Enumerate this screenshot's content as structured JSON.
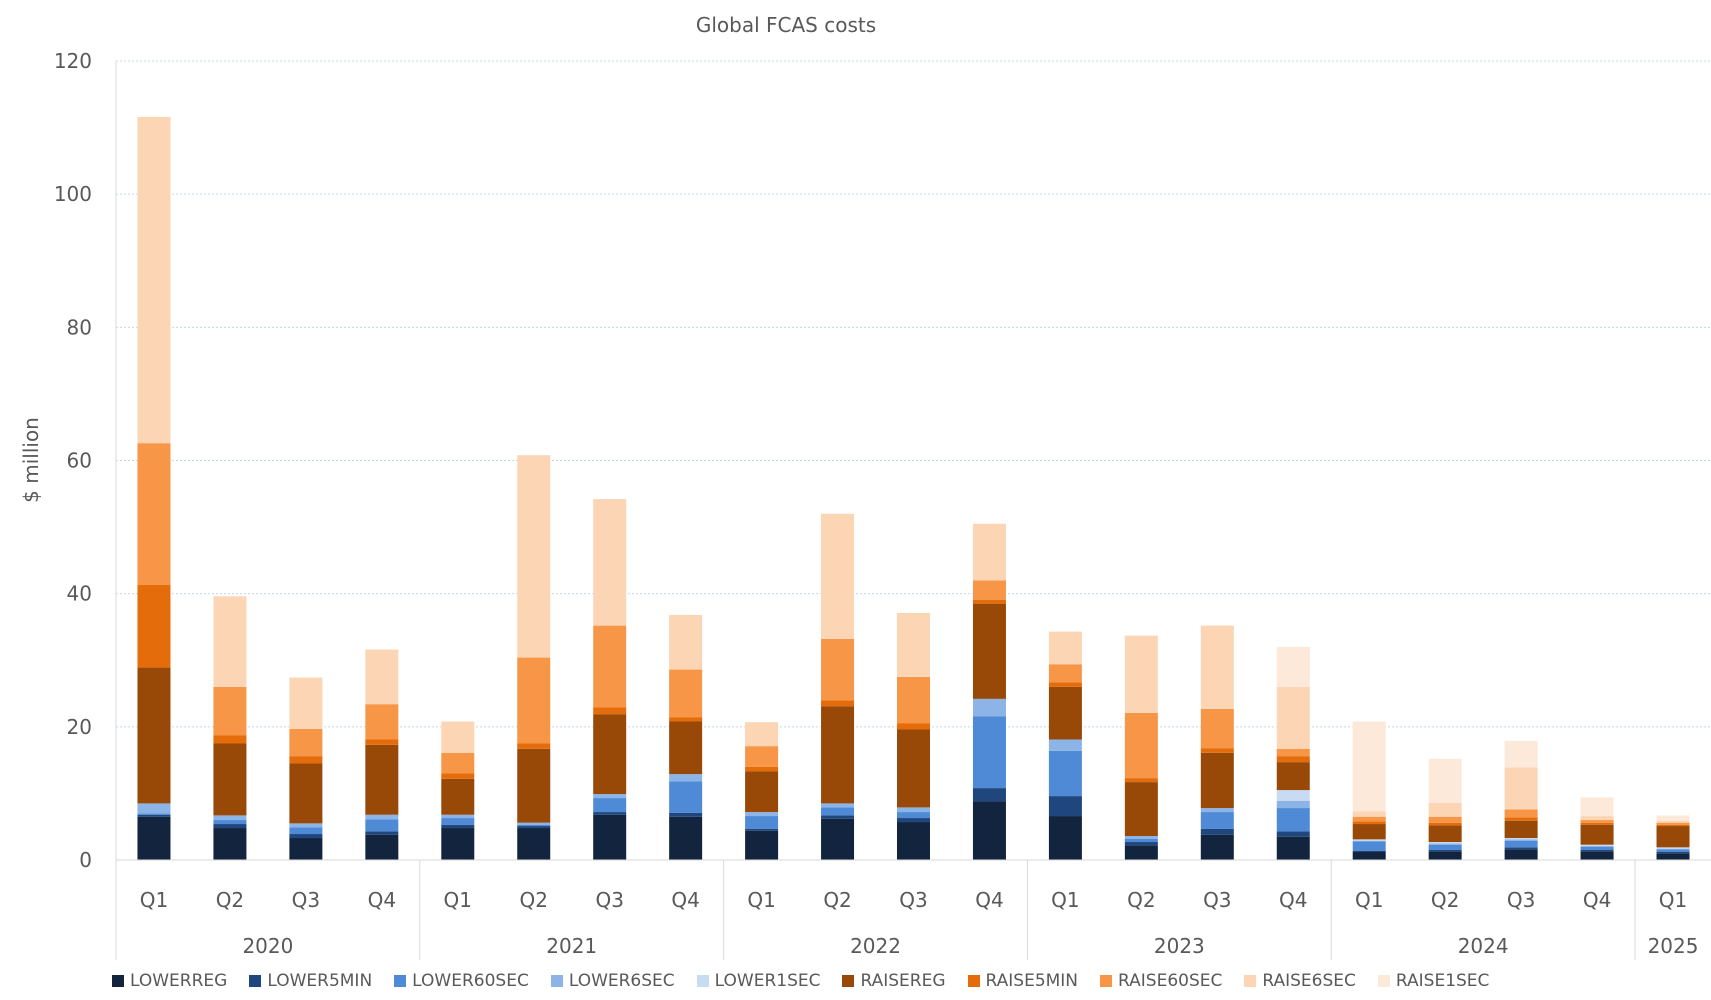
{
  "chart_data": {
    "type": "bar",
    "stacked": true,
    "title": "Global FCAS costs",
    "ylabel": "$ million",
    "xlabel": "",
    "ylim": [
      0,
      120
    ],
    "yticks": [
      0,
      20,
      40,
      60,
      80,
      100,
      120
    ],
    "grid": true,
    "legend_position": "bottom",
    "categories": [
      "Q1",
      "Q2",
      "Q3",
      "Q4",
      "Q1",
      "Q2",
      "Q3",
      "Q4",
      "Q1",
      "Q2",
      "Q3",
      "Q4",
      "Q1",
      "Q2",
      "Q3",
      "Q4",
      "Q1",
      "Q2",
      "Q3",
      "Q4",
      "Q1"
    ],
    "year_groups": [
      {
        "label": "2020",
        "count": 4
      },
      {
        "label": "2021",
        "count": 4
      },
      {
        "label": "2022",
        "count": 4
      },
      {
        "label": "2023",
        "count": 4
      },
      {
        "label": "2024",
        "count": 4
      },
      {
        "label": "2025",
        "count": 1
      }
    ],
    "series": [
      {
        "name": "LOWERREG",
        "color": "#13243f",
        "values": [
          6.5,
          4.8,
          3.3,
          3.8,
          4.8,
          4.8,
          6.8,
          6.5,
          4.4,
          6.2,
          5.7,
          8.8,
          6.6,
          2.2,
          3.8,
          3.5,
          1.2,
          1.3,
          1.6,
          1.3,
          1.0
        ]
      },
      {
        "name": "LOWER5MIN",
        "color": "#1f477e",
        "values": [
          0.3,
          0.6,
          0.6,
          0.5,
          0.5,
          0.3,
          0.4,
          0.6,
          0.3,
          0.5,
          0.6,
          2.0,
          3.0,
          0.5,
          0.9,
          0.8,
          0.2,
          0.2,
          0.3,
          0.2,
          0.2
        ]
      },
      {
        "name": "LOWER60SEC",
        "color": "#4f8ad6",
        "values": [
          0.2,
          0.6,
          1.0,
          1.8,
          1.0,
          0.2,
          2.1,
          4.7,
          1.9,
          1.2,
          0.9,
          10.8,
          6.8,
          0.5,
          2.5,
          3.5,
          1.4,
          0.8,
          1.0,
          0.5,
          0.4
        ]
      },
      {
        "name": "LOWER6SEC",
        "color": "#8db4e6",
        "values": [
          1.5,
          0.7,
          0.6,
          0.7,
          0.5,
          0.3,
          0.6,
          1.1,
          0.6,
          0.6,
          0.7,
          2.6,
          1.7,
          0.4,
          0.6,
          1.1,
          0.1,
          0.2,
          0.2,
          0.1,
          0.1
        ]
      },
      {
        "name": "LOWER1SEC",
        "color": "#c9dbf2",
        "values": [
          0,
          0,
          0,
          0,
          0,
          0,
          0,
          0,
          0,
          0,
          0,
          0,
          0,
          0,
          0,
          1.6,
          0.2,
          0.2,
          0.2,
          0.2,
          0.2
        ]
      },
      {
        "name": "RAISEREG",
        "color": "#984807",
        "values": [
          20.4,
          10.8,
          9.0,
          10.5,
          5.4,
          11.1,
          12.0,
          7.9,
          6.1,
          14.6,
          11.7,
          14.3,
          7.9,
          8.1,
          8.3,
          4.2,
          2.3,
          2.5,
          2.6,
          3.0,
          3.2
        ]
      },
      {
        "name": "RAISE5MIN",
        "color": "#e46c0a",
        "values": [
          12.4,
          1.2,
          1.1,
          0.8,
          0.8,
          0.8,
          1.0,
          0.6,
          0.7,
          0.9,
          0.9,
          0.6,
          0.7,
          0.6,
          0.7,
          0.9,
          0.4,
          0.4,
          0.5,
          0.3,
          0.2
        ]
      },
      {
        "name": "RAISE60SEC",
        "color": "#f79646",
        "values": [
          21.3,
          7.3,
          4.1,
          5.3,
          3.1,
          12.9,
          12.3,
          7.2,
          3.1,
          9.2,
          7.0,
          2.9,
          2.7,
          9.8,
          5.9,
          1.1,
          0.7,
          0.9,
          1.2,
          0.4,
          0.3
        ]
      },
      {
        "name": "RAISE6SEC",
        "color": "#fcd5b5",
        "values": [
          49.0,
          13.6,
          7.7,
          8.2,
          4.7,
          30.4,
          19.0,
          8.2,
          3.6,
          18.8,
          9.6,
          8.5,
          4.9,
          11.6,
          12.5,
          9.3,
          0.8,
          2.1,
          6.3,
          0.6,
          0.3
        ]
      },
      {
        "name": "RAISE1SEC",
        "color": "#fde9d9",
        "values": [
          0,
          0,
          0,
          0,
          0,
          0,
          0,
          0,
          0,
          0,
          0,
          0,
          0,
          0,
          0,
          6.0,
          13.5,
          6.6,
          4.0,
          2.8,
          0.8
        ]
      }
    ]
  }
}
